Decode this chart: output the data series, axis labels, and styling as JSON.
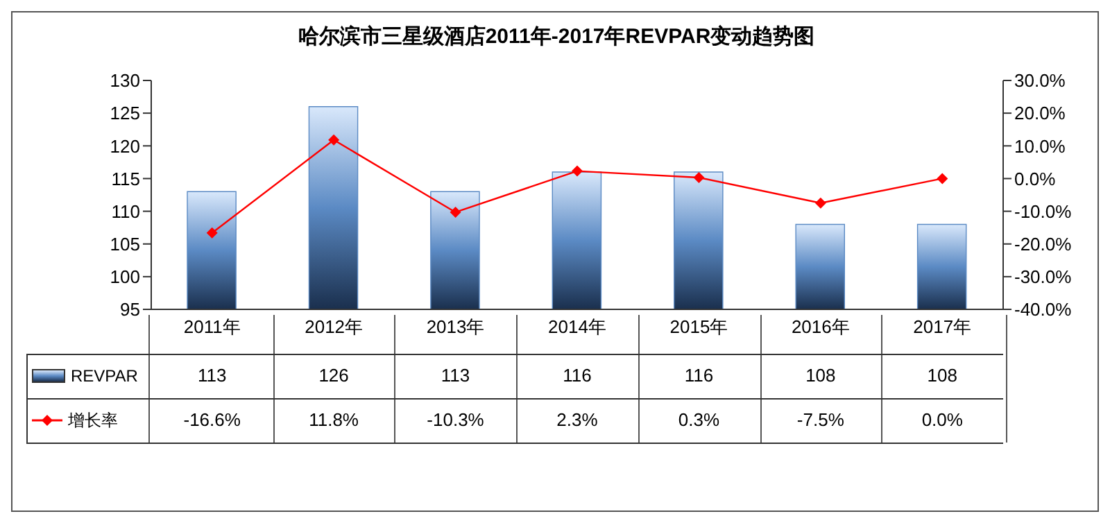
{
  "chart_data": {
    "type": "bar",
    "title": "哈尔滨市三星级酒店2011年-2017年REVPAR变动趋势图",
    "categories": [
      "2011年",
      "2012年",
      "2013年",
      "2014年",
      "2015年",
      "2016年",
      "2017年"
    ],
    "series": [
      {
        "name": "REVPAR",
        "color": "#5b8ac4",
        "values": [
          113,
          126,
          113,
          116,
          116,
          108,
          108
        ],
        "value_labels": [
          "113",
          "126",
          "113",
          "116",
          "116",
          "108",
          "108"
        ]
      },
      {
        "name": "增长率",
        "type": "line",
        "axis": "y2",
        "color": "#ff0000",
        "marker": "diamond",
        "values": [
          -16.6,
          11.8,
          -10.3,
          2.3,
          0.3,
          -7.5,
          0.0
        ],
        "value_labels": [
          "-16.6%",
          "11.8%",
          "-10.3%",
          "2.3%",
          "0.3%",
          "-7.5%",
          "0.0%"
        ]
      }
    ],
    "ylim": [
      95,
      130
    ],
    "yticks": [
      95,
      100,
      105,
      110,
      115,
      120,
      125,
      130
    ],
    "y2lim": [
      -40,
      30
    ],
    "y2ticks": [
      {
        "value": -40,
        "label": "-40.0%"
      },
      {
        "value": -30,
        "label": "-30.0%"
      },
      {
        "value": -20,
        "label": "-20.0%"
      },
      {
        "value": -10,
        "label": "-10.0%"
      },
      {
        "value": 0,
        "label": "0.0%"
      },
      {
        "value": 10,
        "label": "10.0%"
      },
      {
        "value": 20,
        "label": "20.0%"
      },
      {
        "value": 30,
        "label": "30.0%"
      }
    ],
    "legend": "bottom left",
    "grid": false
  }
}
